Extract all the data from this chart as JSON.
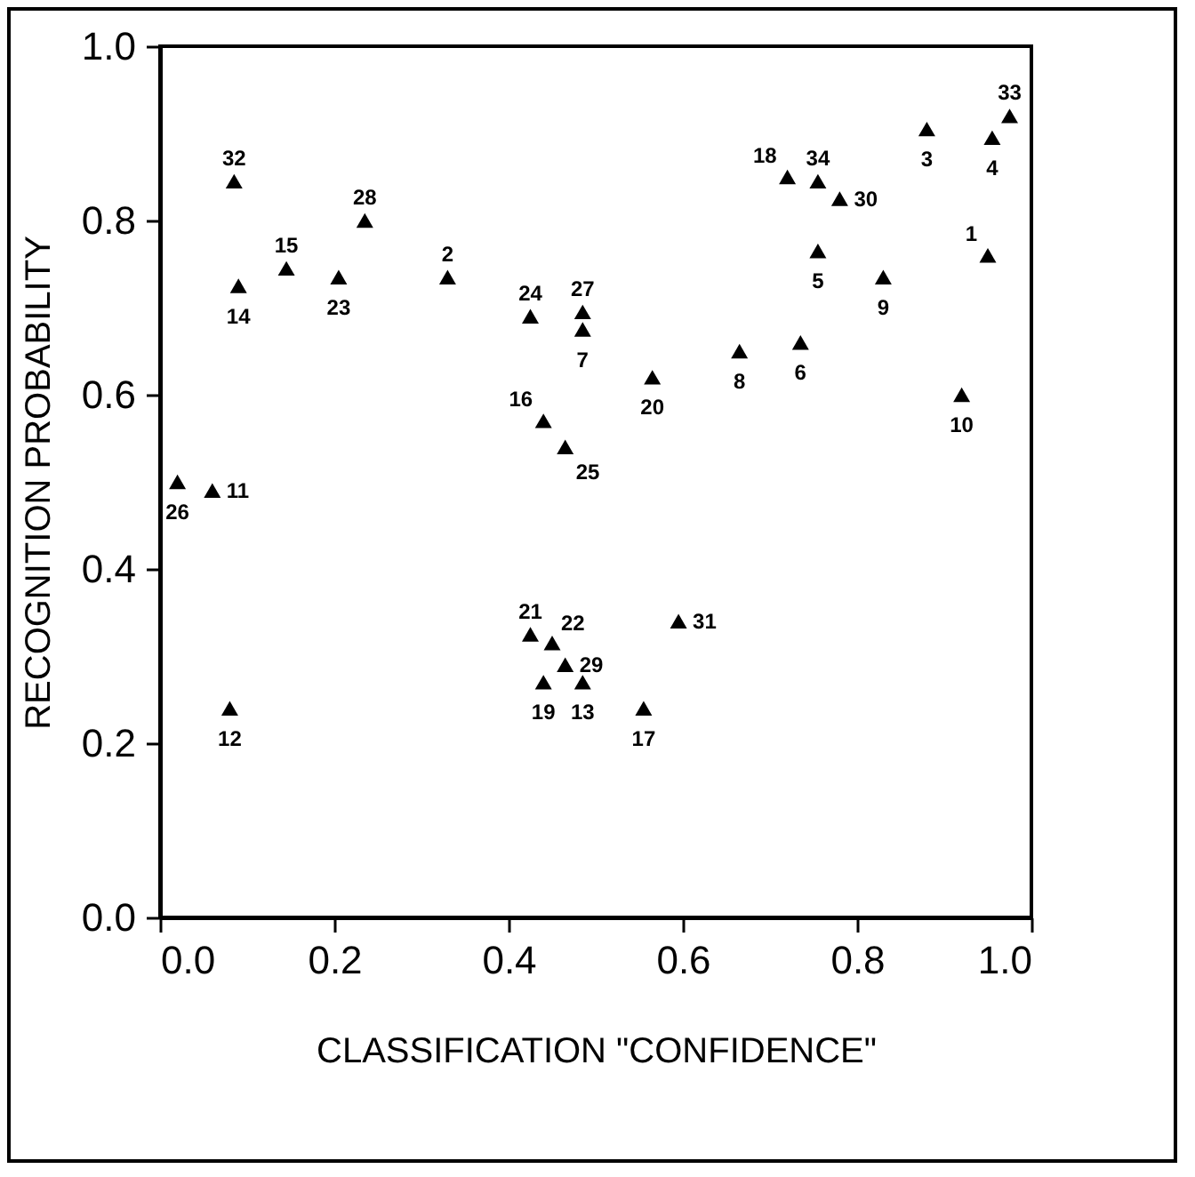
{
  "chart_data": {
    "type": "scatter",
    "xlabel": "CLASSIFICATION \"CONFIDENCE\"",
    "ylabel": "RECOGNITION PROBABILITY",
    "x": [
      0.95,
      0.33,
      0.88,
      0.955,
      0.755,
      0.735,
      0.485,
      0.665,
      0.83,
      0.92,
      0.06,
      0.08,
      0.485,
      0.09,
      0.145,
      0.44,
      0.555,
      0.72,
      0.44,
      0.565,
      0.425,
      0.45,
      0.205,
      0.425,
      0.465,
      0.02,
      0.485,
      0.235,
      0.465,
      0.78,
      0.595,
      0.085,
      0.975,
      0.755
    ],
    "values": [
      0.76,
      0.735,
      0.905,
      0.895,
      0.765,
      0.66,
      0.675,
      0.65,
      0.735,
      0.6,
      0.49,
      0.24,
      0.27,
      0.725,
      0.745,
      0.57,
      0.24,
      0.85,
      0.27,
      0.62,
      0.325,
      0.315,
      0.735,
      0.69,
      0.54,
      0.5,
      0.695,
      0.8,
      0.29,
      0.825,
      0.34,
      0.845,
      0.92,
      0.845
    ],
    "annotations": [
      {
        "text": "1",
        "x": 0.95,
        "y": 0.76
      },
      {
        "text": "2",
        "x": 0.33,
        "y": 0.735
      },
      {
        "text": "3",
        "x": 0.88,
        "y": 0.905
      },
      {
        "text": "4",
        "x": 0.955,
        "y": 0.895
      },
      {
        "text": "5",
        "x": 0.755,
        "y": 0.765
      },
      {
        "text": "6",
        "x": 0.735,
        "y": 0.66
      },
      {
        "text": "7",
        "x": 0.485,
        "y": 0.675
      },
      {
        "text": "8",
        "x": 0.665,
        "y": 0.65
      },
      {
        "text": "9",
        "x": 0.83,
        "y": 0.735
      },
      {
        "text": "10",
        "x": 0.92,
        "y": 0.6
      },
      {
        "text": "11",
        "x": 0.06,
        "y": 0.49
      },
      {
        "text": "12",
        "x": 0.08,
        "y": 0.24
      },
      {
        "text": "13",
        "x": 0.485,
        "y": 0.27
      },
      {
        "text": "14",
        "x": 0.09,
        "y": 0.725
      },
      {
        "text": "15",
        "x": 0.145,
        "y": 0.745
      },
      {
        "text": "16",
        "x": 0.44,
        "y": 0.57
      },
      {
        "text": "17",
        "x": 0.555,
        "y": 0.24
      },
      {
        "text": "18",
        "x": 0.72,
        "y": 0.85
      },
      {
        "text": "19",
        "x": 0.44,
        "y": 0.27
      },
      {
        "text": "20",
        "x": 0.565,
        "y": 0.62
      },
      {
        "text": "21",
        "x": 0.425,
        "y": 0.325
      },
      {
        "text": "22",
        "x": 0.45,
        "y": 0.315
      },
      {
        "text": "23",
        "x": 0.205,
        "y": 0.735
      },
      {
        "text": "24",
        "x": 0.425,
        "y": 0.69
      },
      {
        "text": "25",
        "x": 0.465,
        "y": 0.54
      },
      {
        "text": "26",
        "x": 0.02,
        "y": 0.5
      },
      {
        "text": "27",
        "x": 0.485,
        "y": 0.695
      },
      {
        "text": "28",
        "x": 0.235,
        "y": 0.8
      },
      {
        "text": "29",
        "x": 0.465,
        "y": 0.29
      },
      {
        "text": "30",
        "x": 0.78,
        "y": 0.825
      },
      {
        "text": "31",
        "x": 0.595,
        "y": 0.34
      },
      {
        "text": "32",
        "x": 0.085,
        "y": 0.845
      },
      {
        "text": "33",
        "x": 0.975,
        "y": 0.92
      },
      {
        "text": "34",
        "x": 0.755,
        "y": 0.845
      }
    ],
    "color": "#000000",
    "marker": "triangle",
    "grid": false,
    "xlim": [
      0,
      1
    ],
    "ylim": [
      0,
      1
    ],
    "xticks": [
      {
        "value": 0,
        "label": "0.0"
      },
      {
        "value": 0.2,
        "label": "0.2"
      },
      {
        "value": 0.4,
        "label": "0.4"
      },
      {
        "value": 0.6,
        "label": "0.6"
      },
      {
        "value": 0.8,
        "label": "0.8"
      },
      {
        "value": 1,
        "label": "1.0"
      }
    ],
    "yticks": [
      {
        "value": 0,
        "label": "0.0"
      },
      {
        "value": 0.2,
        "label": "0.2"
      },
      {
        "value": 0.4,
        "label": "0.4"
      },
      {
        "value": 0.6,
        "label": "0.6"
      },
      {
        "value": 0.8,
        "label": "0.8"
      },
      {
        "value": 1,
        "label": "1.0"
      }
    ]
  }
}
